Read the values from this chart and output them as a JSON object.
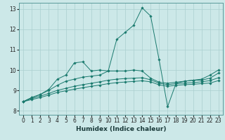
{
  "xlabel": "Humidex (Indice chaleur)",
  "bg_color": "#cce8e8",
  "line_color": "#1a7a6e",
  "grid_color": "#aacfcf",
  "xlim": [
    -0.5,
    23.5
  ],
  "ylim": [
    7.8,
    13.3
  ],
  "yticks": [
    8,
    9,
    10,
    11,
    12,
    13
  ],
  "xticks": [
    0,
    1,
    2,
    3,
    4,
    5,
    6,
    7,
    8,
    9,
    10,
    11,
    12,
    13,
    14,
    15,
    16,
    17,
    18,
    19,
    20,
    21,
    22,
    23
  ],
  "lines": [
    {
      "x": [
        0,
        1,
        2,
        3,
        4,
        5,
        6,
        7,
        8,
        9,
        10,
        11,
        12,
        13,
        14,
        15,
        16,
        17,
        18,
        19,
        20,
        21,
        22,
        23
      ],
      "y": [
        8.45,
        8.65,
        8.8,
        9.05,
        9.55,
        9.75,
        10.35,
        10.4,
        9.95,
        10.0,
        9.95,
        11.5,
        11.85,
        12.2,
        13.05,
        12.65,
        10.5,
        8.2,
        9.35,
        9.45,
        9.5,
        9.55,
        9.75,
        10.0
      ]
    },
    {
      "x": [
        0,
        1,
        2,
        3,
        4,
        5,
        6,
        7,
        8,
        9,
        10,
        11,
        12,
        13,
        14,
        15,
        16,
        17,
        18,
        19,
        20,
        21,
        22,
        23
      ],
      "y": [
        8.45,
        8.65,
        8.8,
        9.0,
        9.25,
        9.45,
        9.55,
        9.65,
        9.7,
        9.75,
        9.95,
        9.95,
        9.95,
        10.0,
        9.95,
        9.6,
        9.4,
        9.35,
        9.4,
        9.45,
        9.5,
        9.5,
        9.6,
        9.85
      ]
    },
    {
      "x": [
        0,
        1,
        2,
        3,
        4,
        5,
        6,
        7,
        8,
        9,
        10,
        11,
        12,
        13,
        14,
        15,
        16,
        17,
        18,
        19,
        20,
        21,
        22,
        23
      ],
      "y": [
        8.45,
        8.6,
        8.72,
        8.85,
        9.0,
        9.1,
        9.2,
        9.28,
        9.35,
        9.42,
        9.5,
        9.55,
        9.58,
        9.6,
        9.62,
        9.52,
        9.35,
        9.28,
        9.33,
        9.36,
        9.38,
        9.42,
        9.48,
        9.62
      ]
    },
    {
      "x": [
        0,
        1,
        2,
        3,
        4,
        5,
        6,
        7,
        8,
        9,
        10,
        11,
        12,
        13,
        14,
        15,
        16,
        17,
        18,
        19,
        20,
        21,
        22,
        23
      ],
      "y": [
        8.45,
        8.55,
        8.65,
        8.77,
        8.9,
        8.98,
        9.06,
        9.13,
        9.2,
        9.26,
        9.33,
        9.38,
        9.41,
        9.44,
        9.47,
        9.42,
        9.27,
        9.2,
        9.25,
        9.28,
        9.3,
        9.33,
        9.36,
        9.48
      ]
    }
  ]
}
